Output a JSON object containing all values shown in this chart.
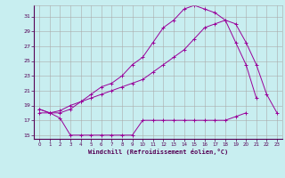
{
  "xlabel": "Windchill (Refroidissement éolien,°C)",
  "bg_color": "#c8eef0",
  "grid_color": "#aaaaaa",
  "line_color": "#990099",
  "xlim": [
    -0.5,
    23.5
  ],
  "ylim": [
    14.5,
    32.5
  ],
  "xticks": [
    0,
    1,
    2,
    3,
    4,
    5,
    6,
    7,
    8,
    9,
    10,
    11,
    12,
    13,
    14,
    15,
    16,
    17,
    18,
    19,
    20,
    21,
    22,
    23
  ],
  "yticks": [
    15,
    17,
    19,
    21,
    23,
    25,
    27,
    29,
    31
  ],
  "curve_bottom_x": [
    0,
    1,
    2,
    3,
    4,
    5,
    6,
    7,
    8,
    9,
    10,
    11,
    12,
    13,
    14,
    15,
    16,
    17,
    18,
    19,
    20
  ],
  "curve_bottom_y": [
    18.0,
    18.0,
    17.3,
    15.0,
    15.0,
    15.0,
    15.0,
    15.0,
    15.0,
    15.0,
    17.0,
    17.0,
    17.0,
    17.0,
    17.0,
    17.0,
    17.0,
    17.0,
    17.0,
    17.5,
    18.0
  ],
  "curve_mid_x": [
    0,
    1,
    2,
    3,
    4,
    5,
    6,
    7,
    8,
    9,
    10,
    11,
    12,
    13,
    14,
    15,
    16,
    17,
    18,
    19,
    20,
    21,
    22,
    23
  ],
  "curve_mid_y": [
    18.5,
    18.0,
    18.3,
    19.0,
    19.5,
    20.0,
    20.5,
    21.0,
    21.5,
    22.0,
    22.5,
    23.5,
    24.5,
    25.5,
    26.5,
    28.0,
    29.5,
    30.0,
    30.5,
    30.0,
    27.5,
    24.5,
    20.5,
    18.0
  ],
  "curve_top_x": [
    0,
    1,
    2,
    3,
    4,
    5,
    6,
    7,
    8,
    9,
    10,
    11,
    12,
    13,
    14,
    15,
    16,
    17,
    18,
    19,
    20,
    21
  ],
  "curve_top_y": [
    18.5,
    18.0,
    18.0,
    18.5,
    19.5,
    20.5,
    21.5,
    22.0,
    23.0,
    24.5,
    25.5,
    27.5,
    29.5,
    30.5,
    32.0,
    32.5,
    32.0,
    31.5,
    30.5,
    27.5,
    24.5,
    20.0
  ]
}
